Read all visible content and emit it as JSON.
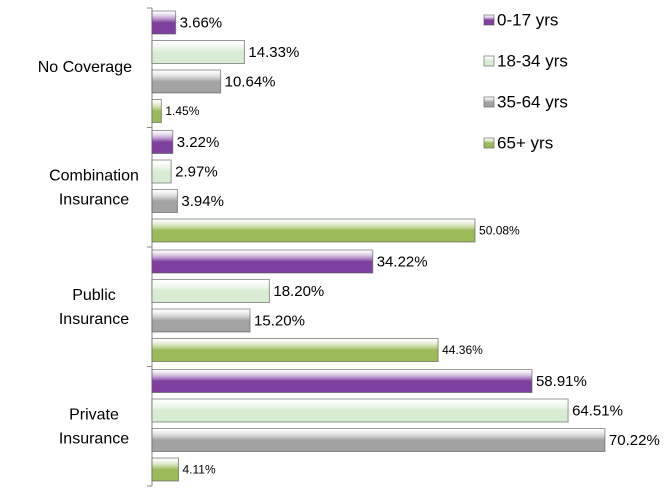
{
  "chart_data": {
    "type": "hbar",
    "categories": [
      "No Coverage",
      "Combination Insurance",
      "Public Insurance",
      "Private Insurance"
    ],
    "series": [
      {
        "name": "0-17 yrs",
        "color": "#7e3f9f",
        "values": [
          3.66,
          3.22,
          34.22,
          58.91
        ],
        "value_labels": [
          "3.66%",
          "3.22%",
          "34.22%",
          "58.91%"
        ]
      },
      {
        "name": "18-34 yrs",
        "color": "#d8ecd4",
        "values": [
          14.33,
          2.97,
          18.2,
          64.51
        ],
        "value_labels": [
          "14.33%",
          "2.97%",
          "18.20%",
          "64.51%"
        ]
      },
      {
        "name": "35-64 yrs",
        "color": "#a3a3a3",
        "values": [
          10.64,
          3.94,
          15.2,
          70.22
        ],
        "value_labels": [
          "10.64%",
          "3.94%",
          "15.20%",
          "70.22%"
        ]
      },
      {
        "name": "65+ yrs",
        "color": "#9bbb59",
        "values": [
          1.45,
          50.08,
          44.36,
          4.11
        ],
        "value_labels": [
          "1.45%",
          "50.08%",
          "44.36%",
          "4.11%"
        ]
      }
    ],
    "xlim": [
      0,
      100
    ],
    "legend": "top-right"
  }
}
